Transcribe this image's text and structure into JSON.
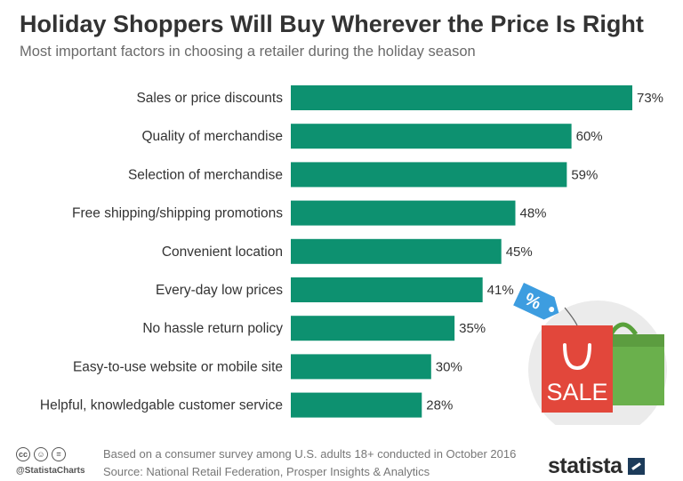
{
  "title": "Holiday Shoppers Will Buy Wherever the Price Is Right",
  "subtitle": "Most important factors in choosing a retailer during the holiday season",
  "chart_data": {
    "type": "bar",
    "orientation": "horizontal",
    "categories": [
      "Sales or price discounts",
      "Quality of merchandise",
      "Selection of merchandise",
      "Free shipping/shipping promotions",
      "Convenient location",
      "Every-day low prices",
      "No hassle return policy",
      "Easy-to-use website or mobile site",
      "Helpful, knowledgable customer service"
    ],
    "values": [
      73,
      60,
      59,
      48,
      45,
      41,
      35,
      30,
      28
    ],
    "value_labels": [
      "73%",
      "60%",
      "59%",
      "48%",
      "45%",
      "41%",
      "35%",
      "30%",
      "28%"
    ],
    "unit": "%",
    "xlim": [
      0,
      73
    ],
    "bar_color": "#0d9170",
    "grid": false,
    "legend": "none"
  },
  "illustration": {
    "tag_text": "%",
    "bag_text": "SALE",
    "colors": {
      "circle": "#ebebeb",
      "red_bag": "#e2473b",
      "green_bag": "#6ab04c",
      "tag": "#3d9de0"
    }
  },
  "footer": {
    "license_icons": [
      "cc",
      "by",
      "="
    ],
    "handle": "@StatistaCharts",
    "note": "Based on a consumer survey among U.S. adults 18+ conducted in October 2016",
    "source": "Source: National Retail Federation, Prosper Insights & Analytics",
    "brand": "statista"
  }
}
